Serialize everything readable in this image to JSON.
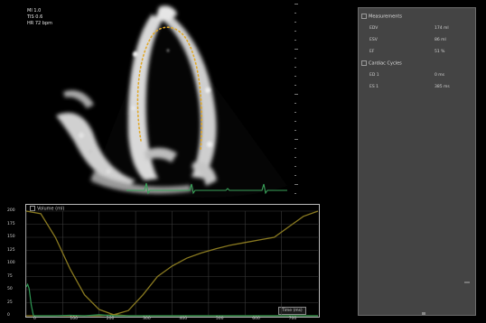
{
  "overlay": {
    "line1": "MI 1.0",
    "line2": "TIS 0.6",
    "line3": "HR 72 bpm"
  },
  "measurements_panel": {
    "section1_title": "Measurements",
    "rows1": [
      {
        "name": "EDV",
        "value": "174 ml"
      },
      {
        "name": "ESV",
        "value": "86 ml"
      },
      {
        "name": "EF",
        "value": "51 %"
      }
    ],
    "section2_title": "Cardiac Cycles",
    "rows2": [
      {
        "name": "ED 1",
        "value": "0 ms"
      },
      {
        "name": "ES 1",
        "value": "385 ms"
      }
    ]
  },
  "graph": {
    "title": "Volume (ml)",
    "legend_label": "Time (ms)",
    "colors": {
      "volume_curve": "#8a7a20",
      "ecg": "#2f9a55",
      "ecg_strip": "#3aa35a",
      "contour": "#e0a82a"
    },
    "chart_data": {
      "type": "line",
      "x_tick_labels": [
        "0",
        "100",
        "200",
        "300",
        "400",
        "500",
        "600",
        "700"
      ],
      "y_tick_labels": [
        "0",
        "25",
        "50",
        "75",
        "100",
        "125",
        "150",
        "175",
        "200"
      ],
      "ylim": [
        0,
        200
      ],
      "xlim": [
        0,
        800
      ],
      "series": [
        {
          "points": [
            [
              0,
              200
            ],
            [
              40,
              195
            ],
            [
              80,
              150
            ],
            [
              120,
              90
            ],
            [
              160,
              40
            ],
            [
              200,
              12
            ],
            [
              240,
              2
            ],
            [
              280,
              0
            ],
            [
              320,
              0
            ],
            [
              360,
              0
            ],
            [
              400,
              0
            ],
            [
              440,
              0
            ],
            [
              480,
              0
            ],
            [
              520,
              0
            ],
            [
              560,
              0
            ],
            [
              600,
              0
            ],
            [
              640,
              0
            ],
            [
              680,
              0
            ],
            [
              720,
              0
            ],
            [
              760,
              0
            ],
            [
              800,
              0
            ]
          ]
        },
        {
          "points": [
            [
              0,
              0
            ],
            [
              40,
              0
            ],
            [
              80,
              0
            ],
            [
              120,
              0
            ],
            [
              160,
              0
            ],
            [
              200,
              0
            ],
            [
              240,
              2
            ],
            [
              280,
              10
            ],
            [
              320,
              40
            ],
            [
              360,
              75
            ],
            [
              400,
              95
            ],
            [
              440,
              110
            ],
            [
              480,
              120
            ],
            [
              520,
              128
            ],
            [
              560,
              135
            ],
            [
              600,
              140
            ],
            [
              640,
              145
            ],
            [
              680,
              150
            ],
            [
              720,
              170
            ],
            [
              760,
              190
            ],
            [
              800,
              200
            ]
          ]
        }
      ],
      "ecg_points": [
        [
          0,
          55
        ],
        [
          4,
          60
        ],
        [
          8,
          52
        ],
        [
          14,
          20
        ],
        [
          20,
          0
        ],
        [
          40,
          0
        ],
        [
          80,
          0
        ],
        [
          120,
          1
        ],
        [
          160,
          0
        ],
        [
          200,
          2
        ],
        [
          240,
          0
        ],
        [
          280,
          0
        ],
        [
          320,
          0
        ],
        [
          360,
          0
        ],
        [
          400,
          0
        ],
        [
          440,
          0
        ],
        [
          480,
          0
        ],
        [
          520,
          0
        ],
        [
          560,
          0
        ],
        [
          600,
          0
        ],
        [
          640,
          0
        ],
        [
          680,
          0
        ],
        [
          720,
          0
        ],
        [
          760,
          0
        ],
        [
          800,
          0
        ]
      ]
    }
  }
}
